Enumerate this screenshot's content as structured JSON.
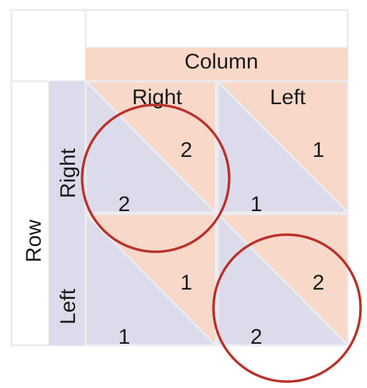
{
  "header": {
    "column_title": "Column",
    "row_title": "Row"
  },
  "columns": [
    "Right",
    "Left"
  ],
  "rows": [
    "Right",
    "Left"
  ],
  "cells": [
    [
      {
        "row_payoff": "2",
        "column_payoff": "2",
        "circled": true
      },
      {
        "row_payoff": "1",
        "column_payoff": "1",
        "circled": false
      }
    ],
    [
      {
        "row_payoff": "1",
        "column_payoff": "1",
        "circled": false
      },
      {
        "row_payoff": "2",
        "column_payoff": "2",
        "circled": true
      }
    ]
  ],
  "colors": {
    "column_fill": "#f7d8c9",
    "row_fill": "#dcdbeb",
    "grid_line": "#ecebf0",
    "circle": "#b8322a",
    "text": "#1a1a1a"
  }
}
